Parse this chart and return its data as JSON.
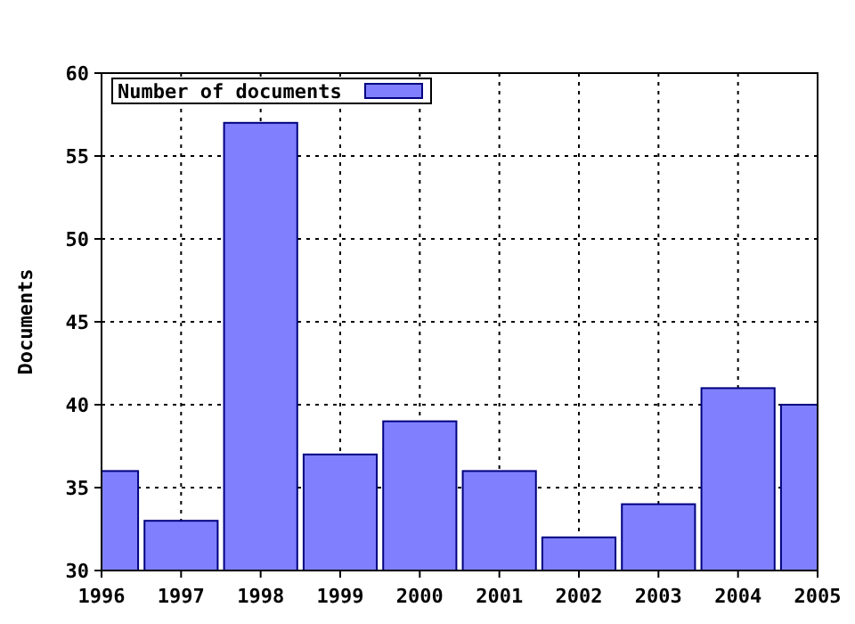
{
  "chart_data": {
    "type": "bar",
    "ylabel": "Documents",
    "x": [
      1996,
      1997,
      1998,
      1999,
      2000,
      2001,
      2002,
      2003,
      2004,
      2005
    ],
    "series": [
      {
        "name": "Number of documents",
        "color": "#8080ff",
        "values": [
          36,
          33,
          57,
          37,
          39,
          36,
          32,
          34,
          41,
          40
        ]
      }
    ],
    "xlim": [
      1996,
      2005
    ],
    "xticks": [
      1996,
      1997,
      1998,
      1999,
      2000,
      2001,
      2002,
      2003,
      2004,
      2005
    ],
    "ylim": [
      30,
      60
    ],
    "yticks": [
      30,
      35,
      40,
      45,
      50,
      55,
      60
    ],
    "grid": true,
    "legend": "top left"
  }
}
